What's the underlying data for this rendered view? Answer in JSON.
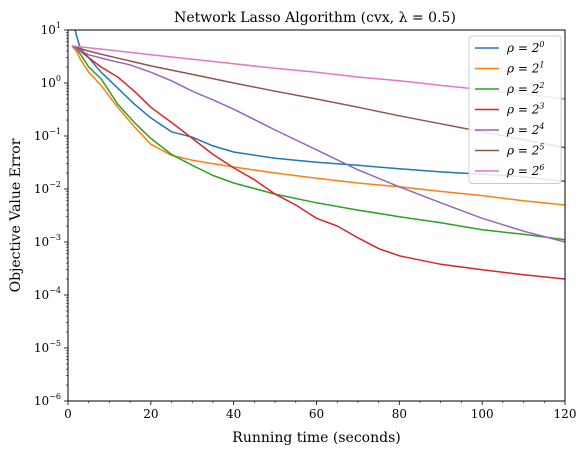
{
  "chart_data": {
    "type": "line",
    "title": "Network Lasso Algorithm (cvx, λ = 0.5)",
    "xlabel": "Running time (seconds)",
    "ylabel": "Objective Value Error",
    "xlim": [
      0,
      120
    ],
    "ylim_log10": [
      -6,
      1
    ],
    "yscale": "log",
    "x_ticks": [
      0,
      20,
      40,
      60,
      80,
      100,
      120
    ],
    "x_tick_labels": [
      "0",
      "20",
      "40",
      "60",
      "80",
      "100",
      "120"
    ],
    "y_ticks_log10": [
      -6,
      -5,
      -4,
      -3,
      -2,
      -1,
      0,
      1
    ],
    "y_tick_labels": [
      {
        "base": "10",
        "exp": "−6"
      },
      {
        "base": "10",
        "exp": "−5"
      },
      {
        "base": "10",
        "exp": "−4"
      },
      {
        "base": "10",
        "exp": "−3"
      },
      {
        "base": "10",
        "exp": "−2"
      },
      {
        "base": "10",
        "exp": "−1"
      },
      {
        "base": "10",
        "exp": "0"
      },
      {
        "base": "10",
        "exp": "1"
      }
    ],
    "legend_position": "top-right",
    "series": [
      {
        "name": "ρ = 2^0",
        "label_main": "ρ = 2",
        "label_sup": "0",
        "color": "#1f77b4",
        "x": [
          1,
          2,
          3,
          5,
          8,
          12,
          16,
          20,
          25,
          30,
          35,
          40,
          50,
          60,
          70,
          80,
          90,
          100,
          110,
          120
        ],
        "y": [
          20,
          8,
          4.5,
          3.0,
          1.6,
          0.8,
          0.4,
          0.22,
          0.12,
          0.095,
          0.065,
          0.05,
          0.038,
          0.032,
          0.028,
          0.024,
          0.021,
          0.019,
          0.017,
          0.014
        ]
      },
      {
        "name": "ρ = 2^1",
        "label_main": "ρ = 2",
        "label_sup": "1",
        "color": "#ff7f0e",
        "x": [
          1,
          2,
          3,
          5,
          8,
          12,
          16,
          20,
          25,
          30,
          35,
          40,
          50,
          60,
          70,
          80,
          90,
          100,
          110,
          120
        ],
        "y": [
          5.0,
          4.0,
          2.8,
          1.6,
          0.9,
          0.35,
          0.15,
          0.07,
          0.043,
          0.035,
          0.03,
          0.026,
          0.02,
          0.016,
          0.013,
          0.011,
          0.009,
          0.0075,
          0.006,
          0.005
        ]
      },
      {
        "name": "ρ = 2^2",
        "label_main": "ρ = 2",
        "label_sup": "2",
        "color": "#2ca02c",
        "x": [
          1,
          2,
          3,
          5,
          8,
          12,
          16,
          20,
          25,
          30,
          35,
          40,
          50,
          60,
          70,
          80,
          90,
          100,
          110,
          120
        ],
        "y": [
          5.0,
          4.5,
          3.5,
          2.0,
          1.2,
          0.4,
          0.18,
          0.09,
          0.045,
          0.028,
          0.018,
          0.013,
          0.008,
          0.0055,
          0.004,
          0.003,
          0.0023,
          0.0017,
          0.0014,
          0.0011
        ]
      },
      {
        "name": "ρ = 2^3",
        "label_main": "ρ = 2",
        "label_sup": "3",
        "color": "#d62728",
        "x": [
          1,
          2,
          3,
          5,
          8,
          12,
          16,
          20,
          25,
          30,
          35,
          40,
          45,
          50,
          55,
          60,
          65,
          70,
          75,
          80,
          90,
          100,
          110,
          120
        ],
        "y": [
          5.0,
          4.6,
          4.0,
          3.0,
          2.0,
          1.3,
          0.7,
          0.35,
          0.18,
          0.09,
          0.045,
          0.025,
          0.015,
          0.008,
          0.005,
          0.0028,
          0.002,
          0.0012,
          0.00075,
          0.00055,
          0.00038,
          0.0003,
          0.00024,
          0.0002
        ]
      },
      {
        "name": "ρ = 2^4",
        "label_main": "ρ = 2",
        "label_sup": "4",
        "color": "#9467bd",
        "x": [
          1,
          5,
          10,
          15,
          20,
          25,
          30,
          35,
          40,
          50,
          60,
          70,
          80,
          90,
          100,
          110,
          120
        ],
        "y": [
          5.0,
          3.4,
          2.7,
          2.2,
          1.6,
          1.1,
          0.7,
          0.48,
          0.32,
          0.13,
          0.055,
          0.023,
          0.011,
          0.0055,
          0.0028,
          0.0016,
          0.001
        ]
      },
      {
        "name": "ρ = 2^5",
        "label_main": "ρ = 2",
        "label_sup": "5",
        "color": "#8c564b",
        "x": [
          1,
          5,
          10,
          15,
          20,
          30,
          40,
          50,
          60,
          70,
          80,
          90,
          100,
          110,
          120
        ],
        "y": [
          5.0,
          4.0,
          3.2,
          2.6,
          2.1,
          1.45,
          1.0,
          0.7,
          0.5,
          0.35,
          0.24,
          0.17,
          0.12,
          0.085,
          0.06
        ]
      },
      {
        "name": "ρ = 2^6",
        "label_main": "ρ = 2",
        "label_sup": "6",
        "color": "#e377c2",
        "x": [
          1,
          10,
          20,
          30,
          40,
          50,
          60,
          70,
          80,
          90,
          100,
          110,
          120
        ],
        "y": [
          5.0,
          4.2,
          3.4,
          2.8,
          2.3,
          1.9,
          1.6,
          1.3,
          1.1,
          0.9,
          0.75,
          0.62,
          0.5
        ]
      }
    ]
  }
}
